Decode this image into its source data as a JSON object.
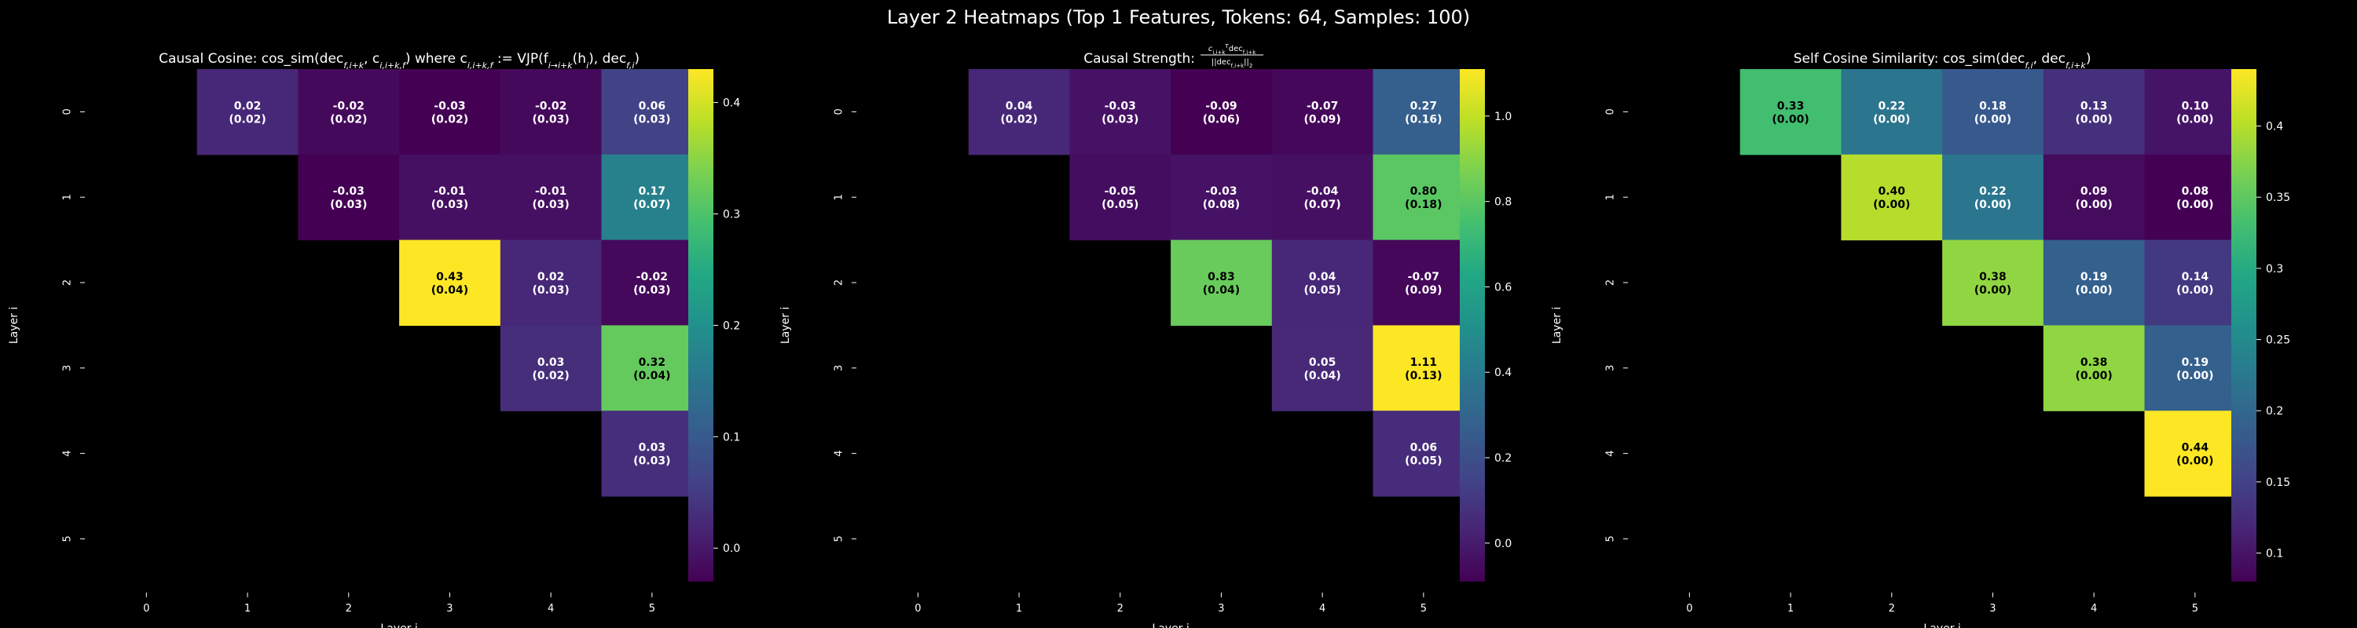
{
  "figure": {
    "suptitle": "Layer 2 Heatmaps (Top 1 Features, Tokens: 64, Samples: 100)"
  },
  "chart_data": [
    {
      "type": "heatmap",
      "title": "Causal Cosine: cos_sim(dec_{f,i+k}, c_{i,i+k,f}) where c_{i,i+k,f} := VJP(f_{i→i+k}(h_i), dec_{f,i})",
      "title_parts": [
        "Causal Cosine: cos_sim(dec",
        "f,i+k",
        ", c",
        "i,i+k,f",
        ") where c",
        "i,i+k,f",
        " := VJP(f",
        "i→i+k",
        "(h",
        "i",
        "), dec",
        "f,i",
        ")"
      ],
      "xlabel": "Layer j",
      "ylabel": "Layer i",
      "x_ticks": [
        "0",
        "1",
        "2",
        "3",
        "4",
        "5"
      ],
      "y_ticks": [
        "0",
        "1",
        "2",
        "3",
        "4",
        "5"
      ],
      "colormap": "viridis",
      "vmin": -0.03,
      "vmax": 0.43,
      "colorbar_ticks": [
        0.0,
        0.1,
        0.2,
        0.3,
        0.4
      ],
      "cells": [
        {
          "i": 0,
          "j": 1,
          "value": 0.02,
          "std": 0.02
        },
        {
          "i": 0,
          "j": 2,
          "value": -0.02,
          "std": 0.02
        },
        {
          "i": 0,
          "j": 3,
          "value": -0.03,
          "std": 0.02
        },
        {
          "i": 0,
          "j": 4,
          "value": -0.02,
          "std": 0.03
        },
        {
          "i": 0,
          "j": 5,
          "value": 0.06,
          "std": 0.03
        },
        {
          "i": 1,
          "j": 2,
          "value": -0.03,
          "std": 0.03
        },
        {
          "i": 1,
          "j": 3,
          "value": -0.01,
          "std": 0.03
        },
        {
          "i": 1,
          "j": 4,
          "value": -0.01,
          "std": 0.03
        },
        {
          "i": 1,
          "j": 5,
          "value": 0.17,
          "std": 0.07
        },
        {
          "i": 2,
          "j": 3,
          "value": 0.43,
          "std": 0.04
        },
        {
          "i": 2,
          "j": 4,
          "value": 0.02,
          "std": 0.03
        },
        {
          "i": 2,
          "j": 5,
          "value": -0.02,
          "std": 0.03
        },
        {
          "i": 3,
          "j": 4,
          "value": 0.03,
          "std": 0.02
        },
        {
          "i": 3,
          "j": 5,
          "value": 0.32,
          "std": 0.04
        },
        {
          "i": 4,
          "j": 5,
          "value": 0.03,
          "std": 0.03
        }
      ]
    },
    {
      "type": "heatmap",
      "title": "Causal Strength: (c_{i,i+k}^T dec_{f,i+k}) / ||dec_{f,i+k}||_2",
      "title_parts": [
        "Causal Strength: "
      ],
      "title_fraction": {
        "num": [
          "c",
          "i,i+k",
          "T",
          "dec",
          "f,i+k"
        ],
        "den": [
          "||dec",
          "f,i+k",
          "||",
          "2"
        ]
      },
      "xlabel": "Layer j",
      "ylabel": "Layer i",
      "x_ticks": [
        "0",
        "1",
        "2",
        "3",
        "4",
        "5"
      ],
      "y_ticks": [
        "0",
        "1",
        "2",
        "3",
        "4",
        "5"
      ],
      "colormap": "viridis",
      "vmin": -0.09,
      "vmax": 1.11,
      "colorbar_ticks": [
        0.0,
        0.2,
        0.4,
        0.6,
        0.8,
        1.0
      ],
      "cells": [
        {
          "i": 0,
          "j": 1,
          "value": 0.04,
          "std": 0.02
        },
        {
          "i": 0,
          "j": 2,
          "value": -0.03,
          "std": 0.03
        },
        {
          "i": 0,
          "j": 3,
          "value": -0.09,
          "std": 0.06
        },
        {
          "i": 0,
          "j": 4,
          "value": -0.07,
          "std": 0.09
        },
        {
          "i": 0,
          "j": 5,
          "value": 0.27,
          "std": 0.16
        },
        {
          "i": 1,
          "j": 2,
          "value": -0.05,
          "std": 0.05
        },
        {
          "i": 1,
          "j": 3,
          "value": -0.03,
          "std": 0.08
        },
        {
          "i": 1,
          "j": 4,
          "value": -0.04,
          "std": 0.07
        },
        {
          "i": 1,
          "j": 5,
          "value": 0.8,
          "std": 0.18
        },
        {
          "i": 2,
          "j": 3,
          "value": 0.83,
          "std": 0.04
        },
        {
          "i": 2,
          "j": 4,
          "value": 0.04,
          "std": 0.05
        },
        {
          "i": 2,
          "j": 5,
          "value": -0.07,
          "std": 0.09
        },
        {
          "i": 3,
          "j": 4,
          "value": 0.05,
          "std": 0.04
        },
        {
          "i": 3,
          "j": 5,
          "value": 1.11,
          "std": 0.13
        },
        {
          "i": 4,
          "j": 5,
          "value": 0.06,
          "std": 0.05
        }
      ]
    },
    {
      "type": "heatmap",
      "title": "Self Cosine Similarity: cos_sim(dec_{f,i}, dec_{f,i+k})",
      "title_parts": [
        "Self Cosine Similarity: cos_sim(dec",
        "f,i",
        ", dec",
        "f,i+k",
        ")"
      ],
      "xlabel": "Layer j",
      "ylabel": "Layer i",
      "x_ticks": [
        "0",
        "1",
        "2",
        "3",
        "4",
        "5"
      ],
      "y_ticks": [
        "0",
        "1",
        "2",
        "3",
        "4",
        "5"
      ],
      "colormap": "viridis",
      "vmin": 0.08,
      "vmax": 0.44,
      "colorbar_ticks": [
        0.1,
        0.15,
        0.2,
        0.25,
        0.3,
        0.35,
        0.4
      ],
      "cells": [
        {
          "i": 0,
          "j": 1,
          "value": 0.33,
          "std": 0.0
        },
        {
          "i": 0,
          "j": 2,
          "value": 0.22,
          "std": 0.0
        },
        {
          "i": 0,
          "j": 3,
          "value": 0.18,
          "std": 0.0
        },
        {
          "i": 0,
          "j": 4,
          "value": 0.13,
          "std": 0.0
        },
        {
          "i": 0,
          "j": 5,
          "value": 0.1,
          "std": 0.0
        },
        {
          "i": 1,
          "j": 2,
          "value": 0.4,
          "std": 0.0
        },
        {
          "i": 1,
          "j": 3,
          "value": 0.22,
          "std": 0.0
        },
        {
          "i": 1,
          "j": 4,
          "value": 0.09,
          "std": 0.0
        },
        {
          "i": 1,
          "j": 5,
          "value": 0.08,
          "std": 0.0
        },
        {
          "i": 2,
          "j": 3,
          "value": 0.38,
          "std": 0.0
        },
        {
          "i": 2,
          "j": 4,
          "value": 0.19,
          "std": 0.0
        },
        {
          "i": 2,
          "j": 5,
          "value": 0.14,
          "std": 0.0
        },
        {
          "i": 3,
          "j": 4,
          "value": 0.38,
          "std": 0.0
        },
        {
          "i": 3,
          "j": 5,
          "value": 0.19,
          "std": 0.0
        },
        {
          "i": 4,
          "j": 5,
          "value": 0.44,
          "std": 0.0
        }
      ]
    }
  ]
}
